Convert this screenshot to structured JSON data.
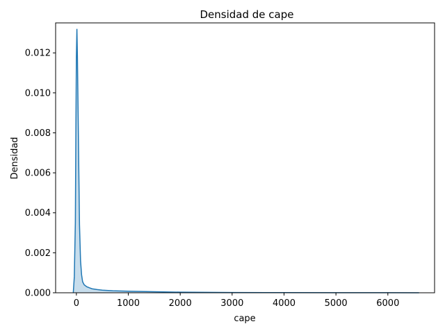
{
  "chart_data": {
    "type": "area",
    "title": "Densidad de cape",
    "xlabel": "cape",
    "ylabel": "Densidad",
    "xlim": [
      -400,
      6900
    ],
    "ylim": [
      0,
      0.0135
    ],
    "xticks": [
      0,
      1000,
      2000,
      3000,
      4000,
      5000,
      6000
    ],
    "xtick_labels": [
      "0",
      "1000",
      "2000",
      "3000",
      "4000",
      "5000",
      "6000"
    ],
    "yticks": [
      0,
      0.002,
      0.004,
      0.006,
      0.008,
      0.01,
      0.012
    ],
    "ytick_labels": [
      "0.000",
      "0.002",
      "0.004",
      "0.006",
      "0.008",
      "0.010",
      "0.012"
    ],
    "grid": false,
    "line_color": "#1f77b4",
    "fill_color": "#1f77b4",
    "series": [
      {
        "x": [
          -60,
          -40,
          -20,
          -10,
          0,
          10,
          20,
          40,
          60,
          80,
          100,
          120,
          150,
          200,
          250,
          300,
          400,
          500,
          700,
          1000,
          1500,
          2000,
          3000,
          4000,
          5000,
          6000,
          6600
        ],
        "y": [
          0,
          0.0008,
          0.0035,
          0.008,
          0.0118,
          0.0132,
          0.0118,
          0.0075,
          0.0034,
          0.0016,
          0.0009,
          0.00055,
          0.0004,
          0.0003,
          0.00025,
          0.0002,
          0.00016,
          0.00013,
          0.0001,
          8e-05,
          5e-05,
          3e-05,
          1.5e-05,
          8e-06,
          5e-06,
          3e-06,
          2e-06
        ]
      }
    ]
  }
}
